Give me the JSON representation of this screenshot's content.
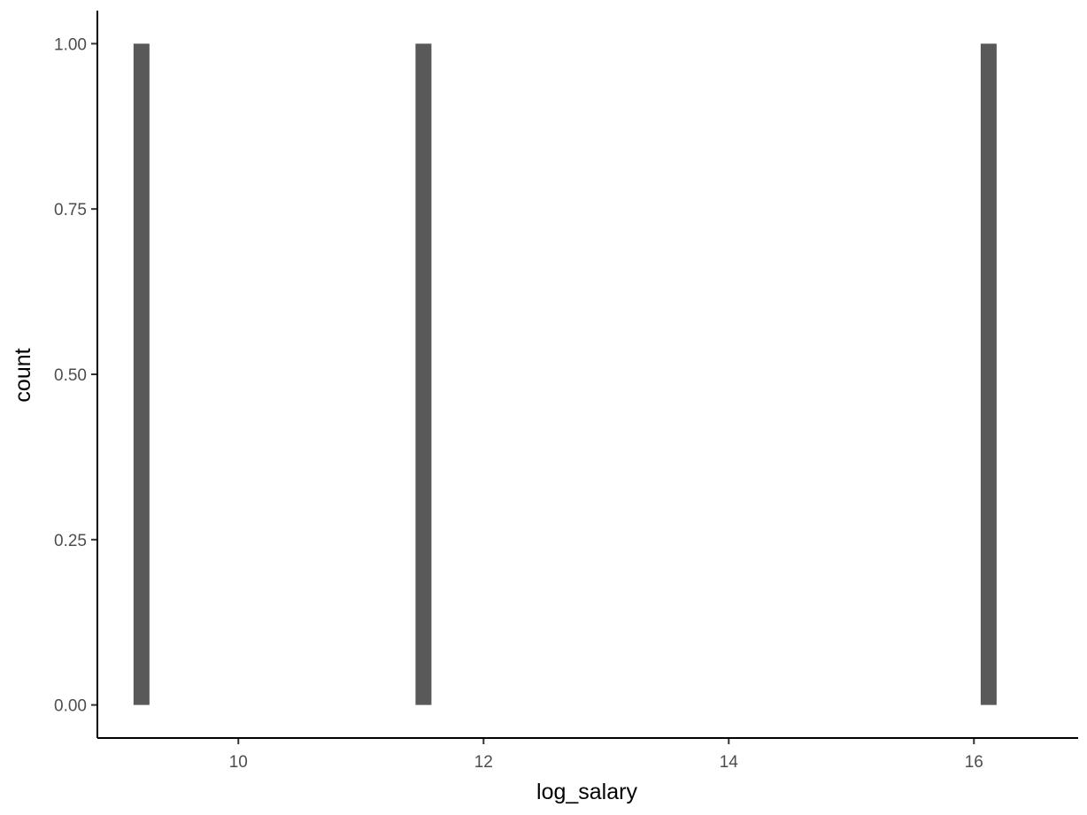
{
  "chart_data": {
    "type": "bar",
    "title": "",
    "xlabel": "log_salary",
    "ylabel": "count",
    "x": [
      9.21,
      11.51,
      16.12
    ],
    "values": [
      1,
      1,
      1
    ],
    "bin_width": 0.13,
    "xlim": [
      8.85,
      16.85
    ],
    "ylim": [
      -0.05,
      1.05
    ],
    "x_ticks": [
      {
        "value": 10,
        "label": "10"
      },
      {
        "value": 12,
        "label": "12"
      },
      {
        "value": 14,
        "label": "14"
      },
      {
        "value": 16,
        "label": "16"
      }
    ],
    "y_ticks": [
      {
        "value": 0,
        "label": "0.00"
      },
      {
        "value": 0.25,
        "label": "0.25"
      },
      {
        "value": 0.5,
        "label": "0.50"
      },
      {
        "value": 0.75,
        "label": "0.75"
      },
      {
        "value": 1,
        "label": "1.00"
      }
    ],
    "grid": false,
    "legend": "none",
    "colors": {
      "bar": "#595959",
      "axis": "#000000",
      "tick_text": "#4d4d4d"
    }
  }
}
